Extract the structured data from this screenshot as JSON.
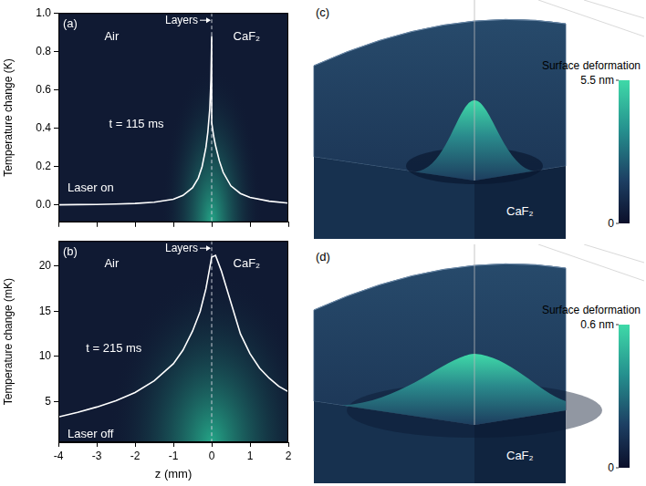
{
  "chart_data": [
    {
      "type": "line",
      "panel_label": "(a)",
      "y_label": "Temperature change (K)",
      "annotations": [
        "Air",
        "CaF₂",
        "t = 115 ms",
        "Laser on"
      ],
      "interface": {
        "z": 0,
        "label": "Layers"
      },
      "color": "#ffffff",
      "x": [
        -4,
        -3.5,
        -3,
        -2.5,
        -2,
        -1.5,
        -1,
        -0.75,
        -0.5,
        -0.35,
        -0.25,
        -0.15,
        -0.1,
        -0.05,
        -0.02,
        0,
        0,
        0.05,
        0.1,
        0.2,
        0.3,
        0.5,
        0.75,
        1,
        1.5,
        2
      ],
      "values": [
        0.001,
        0.002,
        0.003,
        0.005,
        0.008,
        0.015,
        0.03,
        0.05,
        0.09,
        0.14,
        0.2,
        0.3,
        0.38,
        0.5,
        0.65,
        0.88,
        0.43,
        0.36,
        0.31,
        0.23,
        0.17,
        0.1,
        0.06,
        0.04,
        0.02,
        0.01
      ],
      "xlim": [
        -4,
        2
      ],
      "xticks": [
        -4,
        -3,
        -2,
        -1,
        0,
        1,
        2
      ],
      "ylim": [
        -0.09,
        1.0
      ],
      "yticks": [
        {
          "value": 0,
          "label": "0.0"
        },
        0.2,
        0.4,
        0.6,
        0.8,
        {
          "value": 1,
          "label": "1.0"
        }
      ],
      "tick_labels": "y",
      "grid": false
    },
    {
      "type": "line",
      "panel_label": "(b)",
      "x_label": "z (mm)",
      "y_label": "Temperature change (mK)",
      "annotations": [
        "Air",
        "CaF₂",
        "t = 215 ms",
        "Laser off"
      ],
      "interface": {
        "z": 0,
        "label": "Layers"
      },
      "color": "#ffffff",
      "x": [
        -4,
        -3.5,
        -3,
        -2.5,
        -2,
        -1.5,
        -1,
        -0.75,
        -0.5,
        -0.3,
        -0.15,
        0,
        0.1,
        0.25,
        0.5,
        0.75,
        1,
        1.25,
        1.5,
        1.75,
        2
      ],
      "values": [
        3.3,
        3.8,
        4.4,
        5.1,
        6.0,
        7.3,
        9.2,
        10.7,
        12.8,
        15.0,
        17.5,
        21.0,
        21.2,
        19.5,
        16.0,
        12.5,
        10.3,
        8.7,
        7.6,
        6.7,
        6.1
      ],
      "xlim": [
        -4,
        2
      ],
      "xticks": [
        -4,
        -3,
        -2,
        -1,
        0,
        1,
        2
      ],
      "ylim": [
        0.5,
        22.8
      ],
      "yticks": [
        5,
        10,
        15,
        20
      ],
      "grid": false
    },
    {
      "type": "surface",
      "panel_label": "(c)",
      "material": "CaF₂",
      "colorbar": {
        "label": "Surface deformation",
        "range": [
          0,
          5.5
        ],
        "ticks": [
          0,
          {
            "value": 5.5,
            "label": "5.5 nm"
          }
        ]
      }
    },
    {
      "type": "surface",
      "panel_label": "(d)",
      "material": "CaF₂",
      "colorbar": {
        "label": "Surface deformation",
        "range": [
          0,
          0.6
        ],
        "ticks": [
          0,
          {
            "value": 0.6,
            "label": "0.6 nm"
          }
        ]
      }
    }
  ]
}
